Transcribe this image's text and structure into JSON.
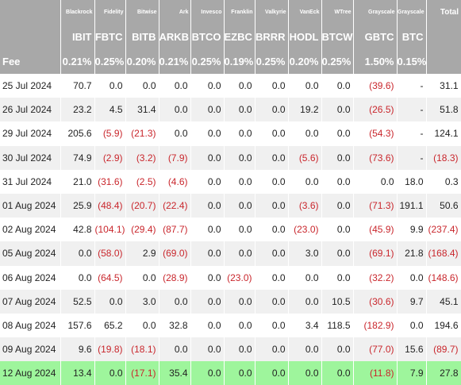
{
  "issuers": [
    "Blackrock",
    "Fidelity",
    "Bitwise",
    "Ark",
    "Invesco",
    "Franklin",
    "Valkyrie",
    "VanEck",
    "WTree",
    "Grayscale",
    "Grayscale",
    "Total"
  ],
  "tickers": [
    "IBIT",
    "FBTC",
    "BITB",
    "ARKB",
    "BTCO",
    "EZBC",
    "BRRR",
    "HODL",
    "BTCW",
    "GBTC",
    "BTC"
  ],
  "fee_label": "Fee",
  "fees": [
    "0.21%",
    "0.25%",
    "0.20%",
    "0.21%",
    "0.25%",
    "0.19%",
    "0.25%",
    "0.20%",
    "0.25%",
    "1.50%",
    "0.15%",
    ""
  ],
  "rows": [
    {
      "date": "25 Jul 2024",
      "values": [
        "70.7",
        "0.0",
        "0.0",
        "0.0",
        "0.0",
        "0.0",
        "0.0",
        "0.0",
        "0.0",
        "(39.6)",
        "-",
        "31.1"
      ]
    },
    {
      "date": "26 Jul 2024",
      "values": [
        "23.2",
        "4.5",
        "31.4",
        "0.0",
        "0.0",
        "0.0",
        "0.0",
        "19.2",
        "0.0",
        "(26.5)",
        "-",
        "51.8"
      ]
    },
    {
      "date": "29 Jul 2024",
      "values": [
        "205.6",
        "(5.9)",
        "(21.3)",
        "0.0",
        "0.0",
        "0.0",
        "0.0",
        "0.0",
        "0.0",
        "(54.3)",
        "-",
        "124.1"
      ]
    },
    {
      "date": "30 Jul 2024",
      "values": [
        "74.9",
        "(2.9)",
        "(3.2)",
        "(7.9)",
        "0.0",
        "0.0",
        "0.0",
        "(5.6)",
        "0.0",
        "(73.6)",
        "-",
        "(18.3)"
      ]
    },
    {
      "date": "31 Jul 2024",
      "values": [
        "21.0",
        "(31.6)",
        "(2.5)",
        "(4.6)",
        "0.0",
        "0.0",
        "0.0",
        "0.0",
        "0.0",
        "0.0",
        "18.0",
        "0.3"
      ]
    },
    {
      "date": "01 Aug 2024",
      "values": [
        "25.9",
        "(48.4)",
        "(20.7)",
        "(22.4)",
        "0.0",
        "0.0",
        "0.0",
        "(3.6)",
        "0.0",
        "(71.3)",
        "191.1",
        "50.6"
      ]
    },
    {
      "date": "02 Aug 2024",
      "values": [
        "42.8",
        "(104.1)",
        "(29.4)",
        "(87.7)",
        "0.0",
        "0.0",
        "0.0",
        "(23.0)",
        "0.0",
        "(45.9)",
        "9.9",
        "(237.4)"
      ]
    },
    {
      "date": "05 Aug 2024",
      "values": [
        "0.0",
        "(58.0)",
        "2.9",
        "(69.0)",
        "0.0",
        "0.0",
        "0.0",
        "3.0",
        "0.0",
        "(69.1)",
        "21.8",
        "(168.4)"
      ]
    },
    {
      "date": "06 Aug 2024",
      "values": [
        "0.0",
        "(64.5)",
        "0.0",
        "(28.9)",
        "0.0",
        "(23.0)",
        "0.0",
        "0.0",
        "0.0",
        "(32.2)",
        "0.0",
        "(148.6)"
      ]
    },
    {
      "date": "07 Aug 2024",
      "values": [
        "52.5",
        "0.0",
        "3.0",
        "0.0",
        "0.0",
        "0.0",
        "0.0",
        "0.0",
        "10.5",
        "(30.6)",
        "9.7",
        "45.1"
      ]
    },
    {
      "date": "08 Aug 2024",
      "values": [
        "157.6",
        "65.2",
        "0.0",
        "32.8",
        "0.0",
        "0.0",
        "0.0",
        "3.4",
        "118.5",
        "(182.9)",
        "0.0",
        "194.6"
      ]
    },
    {
      "date": "09 Aug 2024",
      "values": [
        "9.6",
        "(19.8)",
        "(18.1)",
        "0.0",
        "0.0",
        "0.0",
        "0.0",
        "0.0",
        "0.0",
        "(77.0)",
        "15.6",
        "(89.7)"
      ]
    },
    {
      "date": "12 Aug 2024",
      "values": [
        "13.4",
        "0.0",
        "(17.1)",
        "35.4",
        "0.0",
        "0.0",
        "0.0",
        "0.0",
        "0.0",
        "(11.8)",
        "7.9",
        "27.8"
      ]
    }
  ],
  "colors": {
    "header_bg": "#a8a8a8",
    "stripe": "#f0f0f0",
    "highlight_row": "#9ef59c",
    "negative": "#c9262c"
  }
}
